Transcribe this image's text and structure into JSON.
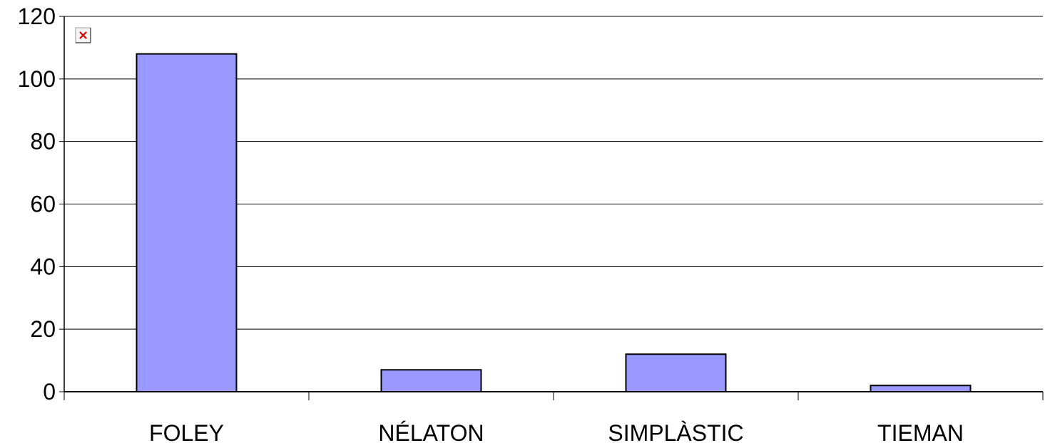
{
  "chart_data": {
    "type": "bar",
    "title": "",
    "xlabel": "",
    "ylabel": "",
    "categories": [
      "FOLEY",
      "NÉLATON",
      "SIMPLÀSTIC",
      "TIEMAN"
    ],
    "values": [
      108,
      7,
      12,
      2
    ],
    "ylim": [
      0,
      120
    ],
    "yticks": [
      "0",
      "20",
      "40",
      "60",
      "80",
      "100",
      "120"
    ],
    "grid": true,
    "legend": "none",
    "colors": {
      "bar_fill": "#9999ff",
      "bar_stroke": "#000000",
      "gridline": "#000000",
      "broken_image_icon": "#e00000"
    },
    "icons": {
      "broken_image": "broken-image-icon"
    }
  }
}
